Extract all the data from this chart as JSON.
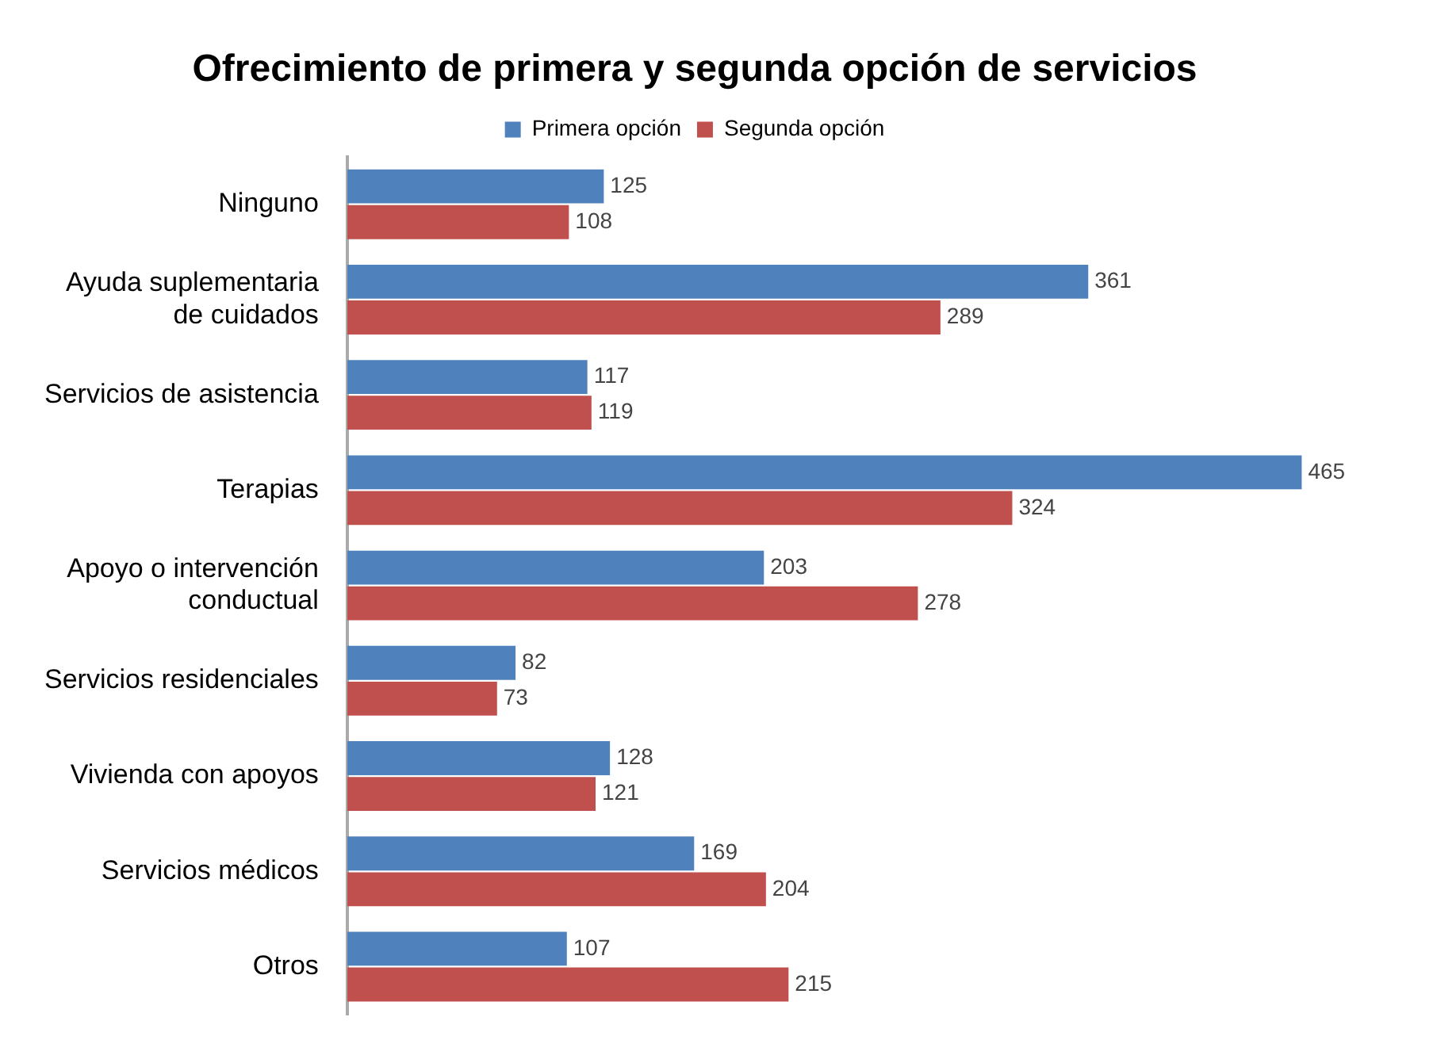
{
  "chart_data": {
    "type": "bar",
    "orientation": "horizontal",
    "title": "Ofrecimiento de primera y segunda opción de servicios",
    "categories": [
      "Ninguno",
      "Ayuda suplementaria de cuidados",
      "Servicios de asistencia",
      "Terapias",
      "Apoyo o intervención conductual",
      "Servicios residenciales",
      "Vivienda con apoyos",
      "Servicios médicos",
      "Otros"
    ],
    "series": [
      {
        "name": "Primera opción",
        "color": "#4f81bd",
        "values": [
          125,
          361,
          117,
          465,
          203,
          82,
          128,
          169,
          107
        ]
      },
      {
        "name": "Segunda opción",
        "color": "#c0504d",
        "values": [
          108,
          289,
          119,
          324,
          278,
          73,
          121,
          204,
          215
        ]
      }
    ],
    "data_labels": true,
    "legend": "top"
  }
}
